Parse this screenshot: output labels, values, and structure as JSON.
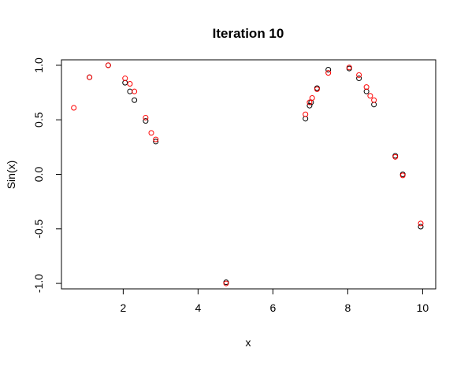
{
  "chart_data": {
    "type": "scatter",
    "title": "Iteration 10",
    "xlabel": "x",
    "ylabel": "Sin(x)",
    "xlim": [
      0.35,
      10.35
    ],
    "ylim": [
      -1.05,
      1.05
    ],
    "xticks": [
      2,
      4,
      6,
      8,
      10
    ],
    "yticks": [
      -1.0,
      -0.5,
      0.0,
      0.5,
      1.0
    ],
    "xtick_labels": [
      "2",
      "4",
      "6",
      "8",
      "10"
    ],
    "ytick_labels": [
      "-1.0",
      "-0.5",
      "0.0",
      "0.5",
      "1.0"
    ],
    "grid": false,
    "series": [
      {
        "color": "#000000",
        "points": [
          [
            1.1,
            0.89
          ],
          [
            1.6,
            1.0
          ],
          [
            2.05,
            0.84
          ],
          [
            2.18,
            0.76
          ],
          [
            2.3,
            0.68
          ],
          [
            2.6,
            0.49
          ],
          [
            2.87,
            0.3
          ],
          [
            4.75,
            -0.99
          ],
          [
            6.87,
            0.51
          ],
          [
            6.98,
            0.63
          ],
          [
            7.02,
            0.66
          ],
          [
            7.18,
            0.79
          ],
          [
            7.48,
            0.96
          ],
          [
            8.04,
            0.97
          ],
          [
            8.3,
            0.88
          ],
          [
            8.5,
            0.76
          ],
          [
            8.7,
            0.64
          ],
          [
            9.27,
            0.17
          ],
          [
            9.47,
            0.0
          ],
          [
            9.95,
            -0.48
          ]
        ]
      },
      {
        "color": "#ff0000",
        "points": [
          [
            0.68,
            0.61
          ],
          [
            1.1,
            0.89
          ],
          [
            1.6,
            1.0
          ],
          [
            2.05,
            0.88
          ],
          [
            2.18,
            0.83
          ],
          [
            2.3,
            0.76
          ],
          [
            2.6,
            0.52
          ],
          [
            2.75,
            0.38
          ],
          [
            2.87,
            0.32
          ],
          [
            4.75,
            -1.0
          ],
          [
            6.87,
            0.55
          ],
          [
            6.98,
            0.66
          ],
          [
            7.05,
            0.7
          ],
          [
            7.18,
            0.78
          ],
          [
            7.48,
            0.93
          ],
          [
            8.04,
            0.98
          ],
          [
            8.3,
            0.91
          ],
          [
            8.5,
            0.8
          ],
          [
            8.6,
            0.72
          ],
          [
            8.7,
            0.68
          ],
          [
            9.27,
            0.16
          ],
          [
            9.47,
            -0.01
          ],
          [
            9.95,
            -0.45
          ]
        ]
      }
    ]
  }
}
